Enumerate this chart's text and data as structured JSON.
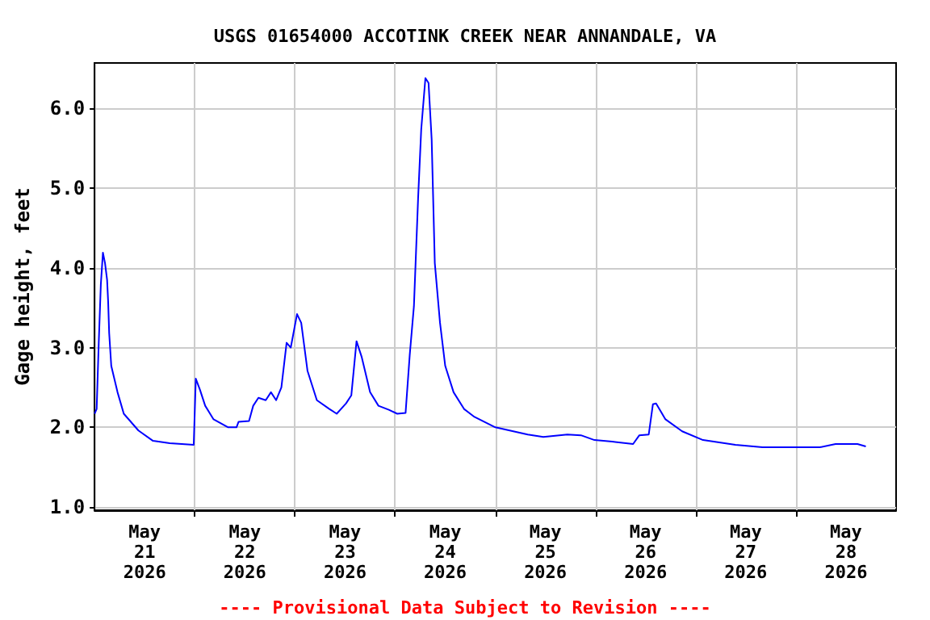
{
  "chart_data": {
    "type": "line",
    "title": "USGS 01654000 ACCOTINK CREEK NEAR ANNANDALE, VA",
    "ylabel": "Gage height, feet",
    "annotations": [
      "---- Provisional Data Subject to Revision ----"
    ],
    "xlim": [
      "2026-05-21T00:00",
      "2026-05-29T00:00"
    ],
    "xticks": [
      {
        "value": "2026-05-21T12:00",
        "label": "May\n21\n2026"
      },
      {
        "value": "2026-05-22T12:00",
        "label": "May\n22\n2026"
      },
      {
        "value": "2026-05-23T12:00",
        "label": "May\n23\n2026"
      },
      {
        "value": "2026-05-24T12:00",
        "label": "May\n24\n2026"
      },
      {
        "value": "2026-05-25T12:00",
        "label": "May\n25\n2026"
      },
      {
        "value": "2026-05-26T12:00",
        "label": "May\n26\n2026"
      },
      {
        "value": "2026-05-27T12:00",
        "label": "May\n27\n2026"
      },
      {
        "value": "2026-05-28T12:00",
        "label": "May\n28\n2026"
      },
      {
        "value": "2026-05-22T00:00",
        "label": null
      },
      {
        "value": "2026-05-23T00:00",
        "label": null
      },
      {
        "value": "2026-05-24T00:00",
        "label": null
      },
      {
        "value": "2026-05-25T00:00",
        "label": null
      },
      {
        "value": "2026-05-26T00:00",
        "label": null
      },
      {
        "value": "2026-05-27T00:00",
        "label": null
      },
      {
        "value": "2026-05-28T00:00",
        "label": null
      }
    ],
    "ylim": [
      0.96,
      6.57
    ],
    "yticks": [
      {
        "value": 1,
        "label": "1.0"
      },
      {
        "value": 2,
        "label": "2.0"
      },
      {
        "value": 3,
        "label": "3.0"
      },
      {
        "value": 4,
        "label": "4.0"
      },
      {
        "value": 5,
        "label": "5.0"
      },
      {
        "value": 6,
        "label": "6.0"
      }
    ],
    "grid": true,
    "marker": "none",
    "line_style": "solid",
    "series": [
      {
        "color": "#0000ff",
        "x": [
          "2026-05-21T00:00",
          "2026-05-21T00:30",
          "2026-05-21T01:00",
          "2026-05-21T01:30",
          "2026-05-21T02:00",
          "2026-05-21T02:30",
          "2026-05-21T03:00",
          "2026-05-21T03:15",
          "2026-05-21T03:30",
          "2026-05-21T04:00",
          "2026-05-21T05:30",
          "2026-05-21T07:00",
          "2026-05-21T10:30",
          "2026-05-21T14:00",
          "2026-05-21T18:00",
          "2026-05-21T23:45",
          "2026-05-22T00:15",
          "2026-05-22T01:15",
          "2026-05-22T02:30",
          "2026-05-22T04:30",
          "2026-05-22T08:00",
          "2026-05-22T10:00",
          "2026-05-22T10:30",
          "2026-05-22T13:00",
          "2026-05-22T14:00",
          "2026-05-22T15:15",
          "2026-05-22T17:00",
          "2026-05-22T18:15",
          "2026-05-22T19:30",
          "2026-05-22T20:45",
          "2026-05-22T22:00",
          "2026-05-22T23:00",
          "2026-05-23T00:30",
          "2026-05-23T01:30",
          "2026-05-23T03:00",
          "2026-05-23T05:15",
          "2026-05-23T08:15",
          "2026-05-23T10:00",
          "2026-05-23T12:15",
          "2026-05-23T13:30",
          "2026-05-23T14:45",
          "2026-05-23T16:00",
          "2026-05-23T18:00",
          "2026-05-23T20:00",
          "2026-05-23T22:30",
          "2026-05-24T00:30",
          "2026-05-24T02:30",
          "2026-05-24T03:30",
          "2026-05-24T04:30",
          "2026-05-24T05:30",
          "2026-05-24T06:15",
          "2026-05-24T07:15",
          "2026-05-24T08:00",
          "2026-05-24T08:45",
          "2026-05-24T09:30",
          "2026-05-24T10:45",
          "2026-05-24T12:00",
          "2026-05-24T14:00",
          "2026-05-24T16:30",
          "2026-05-24T19:00",
          "2026-05-25T00:00",
          "2026-05-25T07:45",
          "2026-05-25T11:30",
          "2026-05-25T17:15",
          "2026-05-25T20:30",
          "2026-05-25T23:45",
          "2026-05-26T04:00",
          "2026-05-26T09:00",
          "2026-05-26T10:30",
          "2026-05-26T12:45",
          "2026-05-26T13:45",
          "2026-05-26T14:30",
          "2026-05-26T16:45",
          "2026-05-26T20:45",
          "2026-05-27T01:45",
          "2026-05-27T09:30",
          "2026-05-27T16:00",
          "2026-05-28T05:45",
          "2026-05-28T09:30",
          "2026-05-28T14:45",
          "2026-05-28T16:45"
        ],
        "values": [
          2.17,
          2.23,
          3.06,
          3.79,
          4.19,
          4.06,
          3.85,
          3.58,
          3.18,
          2.77,
          2.44,
          2.17,
          1.96,
          1.83,
          1.8,
          1.78,
          2.61,
          2.47,
          2.27,
          2.1,
          2.0,
          2.0,
          2.07,
          2.08,
          2.27,
          2.37,
          2.34,
          2.44,
          2.34,
          2.5,
          3.06,
          3.0,
          3.42,
          3.31,
          2.71,
          2.34,
          2.23,
          2.17,
          2.3,
          2.4,
          3.08,
          2.88,
          2.44,
          2.27,
          2.22,
          2.17,
          2.18,
          2.91,
          3.52,
          4.87,
          5.74,
          6.38,
          6.32,
          5.61,
          4.06,
          3.31,
          2.77,
          2.44,
          2.23,
          2.13,
          2.0,
          1.91,
          1.88,
          1.91,
          1.9,
          1.84,
          1.82,
          1.79,
          1.9,
          1.91,
          2.29,
          2.3,
          2.1,
          1.95,
          1.84,
          1.78,
          1.75,
          1.75,
          1.79,
          1.79,
          1.76
        ]
      }
    ]
  }
}
